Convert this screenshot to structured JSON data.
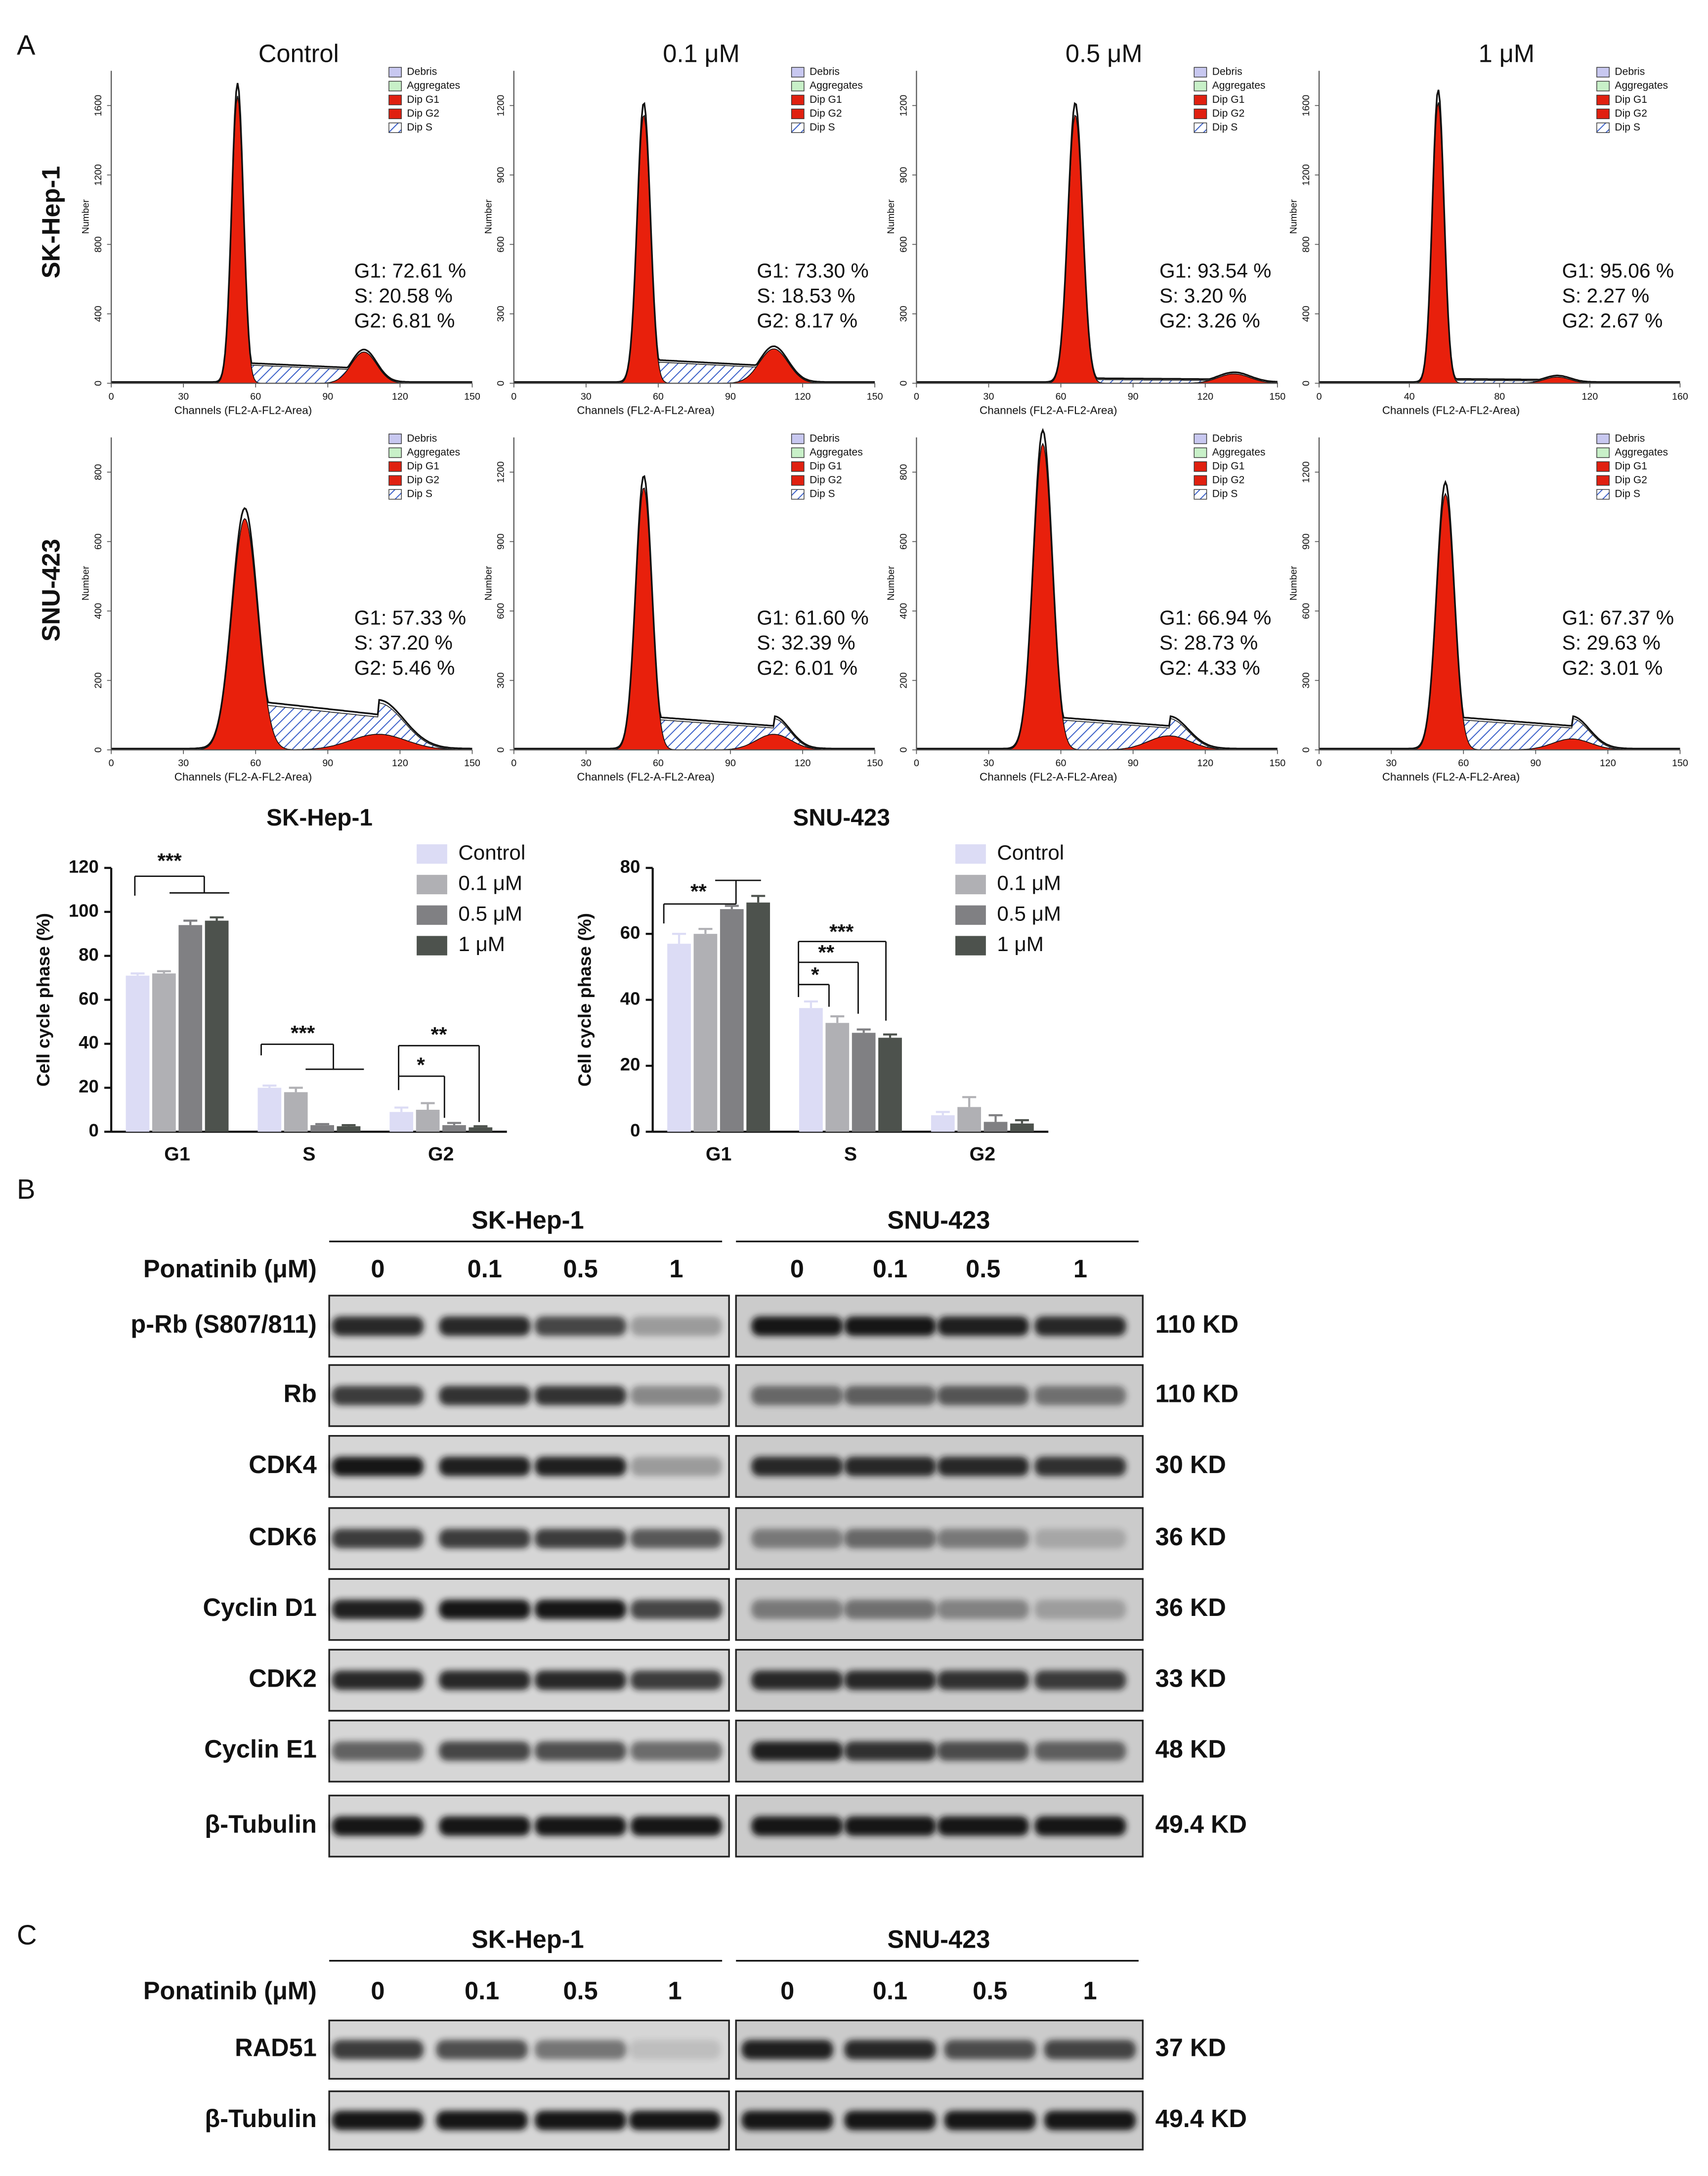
{
  "panel_a": {
    "label": "A",
    "columns": [
      "Control",
      "0.1 μM",
      "0.5 μM",
      "1 μM"
    ],
    "rows": [
      "SK-Hep-1",
      "SNU-423"
    ],
    "legend": [
      "Debris",
      "Aggregates",
      "Dip G1",
      "Dip G2",
      "Dip S"
    ],
    "x_axis_label": "Channels  (FL2-A-FL2-Area)",
    "y_axis_label": "Number",
    "histograms": [
      {
        "stats": [
          "G1: 72.61 %",
          "S: 20.58 %",
          "G2: 6.81 %"
        ],
        "xticks": [
          0,
          30,
          60,
          90,
          120,
          150
        ],
        "yticks": [
          0,
          400,
          800,
          1200,
          1600
        ]
      },
      {
        "stats": [
          "G1: 73.30 %",
          "S: 18.53 %",
          "G2: 8.17 %"
        ],
        "xticks": [
          0,
          30,
          60,
          90,
          120,
          150
        ],
        "yticks": [
          0,
          300,
          600,
          900,
          1200
        ]
      },
      {
        "stats": [
          "G1: 93.54 %",
          "S: 3.20 %",
          "G2: 3.26 %"
        ],
        "xticks": [
          0,
          30,
          60,
          90,
          120,
          150
        ],
        "yticks": [
          0,
          300,
          600,
          900,
          1200
        ]
      },
      {
        "stats": [
          "G1: 95.06 %",
          "S: 2.27 %",
          "G2: 2.67 %"
        ],
        "xticks": [
          0,
          40,
          80,
          120,
          160
        ],
        "yticks": [
          0,
          400,
          800,
          1200,
          1600
        ]
      },
      {
        "stats": [
          "G1: 57.33 %",
          "S: 37.20 %",
          "G2: 5.46 %"
        ],
        "xticks": [
          0,
          30,
          60,
          90,
          120,
          150
        ],
        "yticks": [
          0,
          200,
          400,
          600,
          800
        ]
      },
      {
        "stats": [
          "G1: 61.60 %",
          "S: 32.39 %",
          "G2: 6.01 %"
        ],
        "xticks": [
          0,
          30,
          60,
          90,
          120,
          150
        ],
        "yticks": [
          0,
          300,
          600,
          900,
          1200
        ]
      },
      {
        "stats": [
          "G1: 66.94 %",
          "S: 28.73 %",
          "G2: 4.33 %"
        ],
        "xticks": [
          0,
          30,
          60,
          90,
          120,
          150
        ],
        "yticks": [
          0,
          200,
          400,
          600,
          800
        ]
      },
      {
        "stats": [
          "G1: 67.37 %",
          "S: 29.63 %",
          "G2: 3.01 %"
        ],
        "xticks": [
          0,
          30,
          60,
          90,
          120,
          150
        ],
        "yticks": [
          0,
          300,
          600,
          900,
          1200
        ]
      }
    ]
  },
  "bar_charts": [
    {
      "type": "bar",
      "title": "SK-Hep-1",
      "ylabel": "Cell cycle phase (%)",
      "categories": [
        "G1",
        "S",
        "G2"
      ],
      "series": [
        {
          "name": "Control",
          "color": "#dcdcf5",
          "values": [
            71,
            20,
            9
          ],
          "errors": [
            1,
            1,
            2
          ]
        },
        {
          "name": "0.1 μM",
          "color": "#b0b0b4",
          "values": [
            72,
            18,
            10
          ],
          "errors": [
            1,
            2,
            3
          ]
        },
        {
          "name": "0.5 μM",
          "color": "#808083",
          "values": [
            94,
            3,
            3
          ],
          "errors": [
            2,
            0.5,
            1
          ]
        },
        {
          "name": "1 μM",
          "color": "#4d524d",
          "values": [
            96,
            2.5,
            2
          ],
          "errors": [
            1.5,
            0.5,
            0.5
          ]
        }
      ],
      "ylim": [
        0,
        120
      ],
      "yticks": [
        0,
        20,
        40,
        60,
        80,
        100,
        120
      ],
      "annotations": [
        "***",
        "***",
        "*",
        "**"
      ]
    },
    {
      "type": "bar",
      "title": "SNU-423",
      "ylabel": "Cell cycle phase (%)",
      "categories": [
        "G1",
        "S",
        "G2"
      ],
      "series": [
        {
          "name": "Control",
          "color": "#dcdcf5",
          "values": [
            57,
            37.5,
            5
          ],
          "errors": [
            3,
            2,
            1
          ]
        },
        {
          "name": "0.1 μM",
          "color": "#b0b0b4",
          "values": [
            60,
            33,
            7.5
          ],
          "errors": [
            1.5,
            2,
            3
          ]
        },
        {
          "name": "0.5 μM",
          "color": "#808083",
          "values": [
            67.5,
            30,
            3
          ],
          "errors": [
            1,
            1,
            2
          ]
        },
        {
          "name": "1 μM",
          "color": "#4d524d",
          "values": [
            69.5,
            28.5,
            2.5
          ],
          "errors": [
            2,
            1,
            1
          ]
        }
      ],
      "ylim": [
        0,
        80
      ],
      "yticks": [
        0,
        20,
        40,
        60,
        80
      ],
      "annotations": [
        "**",
        "*",
        "**",
        "***"
      ]
    }
  ],
  "panel_b": {
    "label": "B",
    "cell_lines": [
      "SK-Hep-1",
      "SNU-423"
    ],
    "treatment_label": "Ponatinib (μM)",
    "doses": [
      "0",
      "0.1",
      "0.5",
      "1",
      "0",
      "0.1",
      "0.5",
      "1"
    ],
    "proteins": [
      {
        "name": "p-Rb (S807/811)",
        "size": "110 KD"
      },
      {
        "name": "Rb",
        "size": "110 KD"
      },
      {
        "name": "CDK4",
        "size": "30 KD"
      },
      {
        "name": "CDK6",
        "size": "36 KD"
      },
      {
        "name": "Cyclin D1",
        "size": "36 KD"
      },
      {
        "name": "CDK2",
        "size": "33 KD"
      },
      {
        "name": "Cyclin E1",
        "size": "48 KD"
      },
      {
        "name": "β-Tubulin",
        "size": "49.4 KD"
      }
    ]
  },
  "panel_c": {
    "label": "C",
    "cell_lines": [
      "SK-Hep-1",
      "SNU-423"
    ],
    "treatment_label": "Ponatinib (μM)",
    "doses": [
      "0",
      "0.1",
      "0.5",
      "1",
      "0",
      "0.1",
      "0.5",
      "1"
    ],
    "proteins": [
      {
        "name": "RAD51",
        "size": "37 KD"
      },
      {
        "name": "β-Tubulin",
        "size": "49.4 KD"
      }
    ]
  }
}
